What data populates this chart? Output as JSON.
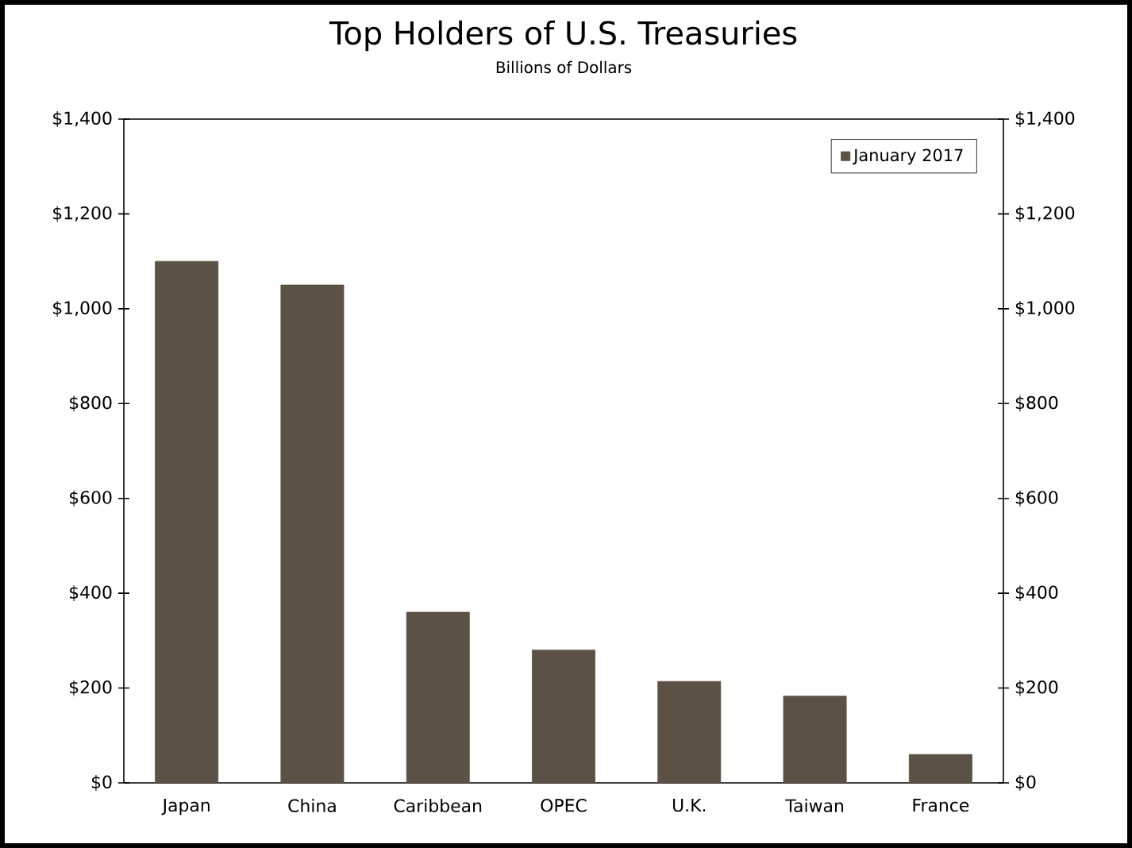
{
  "chart_data": {
    "type": "bar",
    "title": "Top Holders of U.S. Treasuries",
    "subtitle": "Billions of Dollars",
    "categories": [
      "Japan",
      "China",
      "Caribbean",
      "OPEC",
      "U.K.",
      "Taiwan",
      "France"
    ],
    "series": [
      {
        "name": "January 2017",
        "color": "#5c5145",
        "values": [
          1100,
          1050,
          360,
          280,
          214,
          183,
          60
        ]
      }
    ],
    "ylim": [
      0,
      1400
    ],
    "yticks": [
      {
        "value": 0,
        "label": "$0"
      },
      {
        "value": 200,
        "label": "$200"
      },
      {
        "value": 400,
        "label": "$400"
      },
      {
        "value": 600,
        "label": "$600"
      },
      {
        "value": 800,
        "label": "$800"
      },
      {
        "value": 1000,
        "label": "$1,000"
      },
      {
        "value": 1200,
        "label": "$1,200"
      },
      {
        "value": 1400,
        "label": "$1,400"
      }
    ],
    "y2lim": [
      0,
      1400
    ],
    "y2ticks": [
      {
        "value": 0,
        "label": "$0"
      },
      {
        "value": 200,
        "label": "$200"
      },
      {
        "value": 400,
        "label": "$400"
      },
      {
        "value": 600,
        "label": "$600"
      },
      {
        "value": 800,
        "label": "$800"
      },
      {
        "value": 1000,
        "label": "$1,000"
      },
      {
        "value": 1200,
        "label": "$1,200"
      },
      {
        "value": 1400,
        "label": "$1,400"
      }
    ],
    "legend": "top right"
  }
}
